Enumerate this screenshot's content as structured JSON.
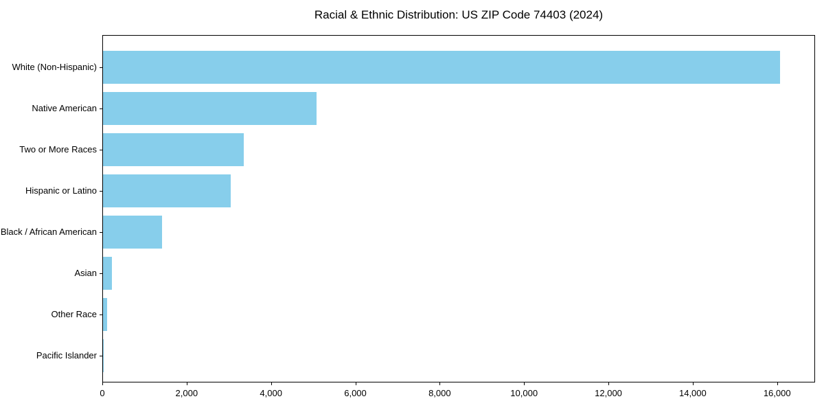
{
  "chart_data": {
    "type": "bar",
    "orientation": "horizontal",
    "title": "Racial & Ethnic Distribution: US ZIP Code 74403 (2024)",
    "categories": [
      "White (Non-Hispanic)",
      "Native American",
      "Two or More Races",
      "Hispanic or Latino",
      "Black / African American",
      "Asian",
      "Other Race",
      "Pacific Islander"
    ],
    "values": [
      16080,
      5075,
      3340,
      3030,
      1395,
      210,
      90,
      10
    ],
    "bar_color": "#87CEEB",
    "text_color": "#000000",
    "xlabel": "",
    "ylabel": "",
    "xlim": [
      0,
      16900
    ],
    "x_ticks": [
      0,
      2000,
      4000,
      6000,
      8000,
      10000,
      12000,
      14000,
      16000
    ],
    "x_tick_labels": [
      "0",
      "2,000",
      "4,000",
      "6,000",
      "8,000",
      "10,000",
      "12,000",
      "14,000",
      "16,000"
    ],
    "grid": false,
    "legend": "none"
  }
}
